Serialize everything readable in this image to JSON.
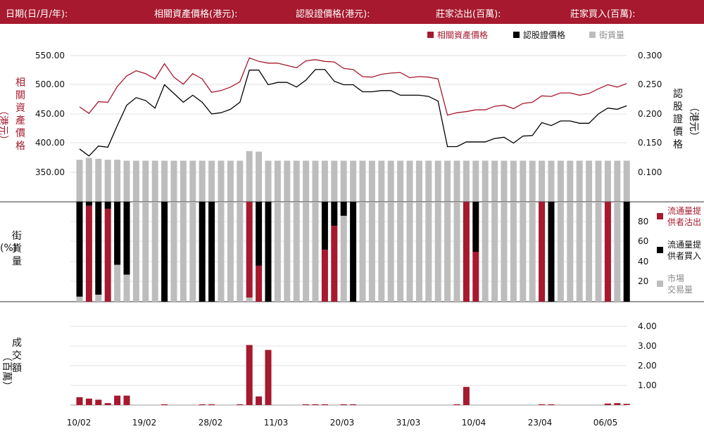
{
  "header": {
    "date_label": "日期(日/月/年):",
    "underlying_price_label": "相關資產價格(港元):",
    "warrant_price_label": "認股證價格(港元):",
    "issuer_sell_label": "莊家沽出(百萬):",
    "issuer_buy_label": "莊家買入(百萬):"
  },
  "legend": {
    "underlying": "相關資產價格",
    "warrant": "認股證價格",
    "outstanding": "街貨量"
  },
  "colors": {
    "red": "#a6192e",
    "black": "#000000",
    "grey": "#bdbdbd"
  },
  "chart_data": [
    {
      "type": "line",
      "title": "",
      "x_tick_labels": [
        "10/02",
        "19/02",
        "28/02",
        "11/03",
        "20/03",
        "31/03",
        "10/04",
        "23/04",
        "06/05"
      ],
      "y_left_label": "相關資產價格（港元）",
      "y_left_ticks": [
        "550.00",
        "500.00",
        "450.00",
        "400.00",
        "350.00"
      ],
      "y_left_lim": [
        300,
        560
      ],
      "y_right_label": "認股證價格（港元）",
      "y_right_ticks": [
        "0.300",
        "0.250",
        "0.200",
        "0.150",
        "0.100"
      ],
      "y_right_lim": [
        0.05,
        0.312
      ],
      "series": [
        {
          "name": "相關資產價格",
          "axis": "left",
          "color": "#a6192e",
          "values": [
            462,
            451,
            471,
            470,
            497,
            515,
            524,
            519,
            510,
            536,
            513,
            501,
            519,
            510,
            487,
            490,
            496,
            505,
            546,
            540,
            537,
            537,
            533,
            529,
            541,
            543,
            540,
            539,
            528,
            526,
            514,
            513,
            518,
            520,
            521,
            512,
            514,
            513,
            510,
            448,
            452,
            454,
            457,
            457,
            463,
            465,
            459,
            468,
            470,
            481,
            480,
            486,
            486,
            482,
            485,
            493,
            500,
            496,
            502
          ]
        },
        {
          "name": "認股證價格",
          "axis": "right",
          "color": "#000000",
          "values": [
            0.14,
            0.128,
            0.145,
            0.143,
            0.18,
            0.215,
            0.228,
            0.223,
            0.21,
            0.25,
            0.235,
            0.22,
            0.232,
            0.22,
            0.2,
            0.202,
            0.208,
            0.22,
            0.275,
            0.275,
            0.25,
            0.254,
            0.254,
            0.246,
            0.258,
            0.276,
            0.276,
            0.256,
            0.25,
            0.25,
            0.238,
            0.238,
            0.24,
            0.24,
            0.232,
            0.232,
            0.232,
            0.23,
            0.222,
            0.144,
            0.144,
            0.152,
            0.152,
            0.152,
            0.158,
            0.16,
            0.15,
            0.162,
            0.163,
            0.185,
            0.18,
            0.188,
            0.188,
            0.184,
            0.184,
            0.2,
            0.21,
            0.208,
            0.214
          ]
        },
        {
          "name": "街貨量",
          "kind": "bar",
          "color": "#bdbdbd",
          "values": [
            88,
            92,
            90,
            88,
            88,
            86,
            86,
            86,
            86,
            86,
            86,
            86,
            86,
            86,
            86,
            86,
            86,
            86,
            106,
            105,
            86,
            86,
            86,
            86,
            86,
            86,
            86,
            86,
            86,
            86,
            86,
            86,
            86,
            86,
            86,
            86,
            86,
            86,
            86,
            86,
            86,
            86,
            86,
            86,
            86,
            86,
            86,
            86,
            86,
            86,
            86,
            86,
            86,
            86,
            86,
            86,
            86,
            86,
            86
          ]
        }
      ]
    },
    {
      "type": "bar",
      "stacked": true,
      "title": "",
      "y_label": "街貨量（%）",
      "y_ticks": [
        "80",
        "60",
        "40",
        "20"
      ],
      "ylim": [
        0,
        100
      ],
      "legend": [
        "流通量提供者沽出",
        "流通量提供者買入",
        "市場交易量"
      ],
      "series": [
        {
          "name": "流通量提供者沽出",
          "color": "#a6192e",
          "values": [
            0,
            96,
            0,
            93,
            0,
            0,
            0,
            0,
            0,
            0,
            0,
            0,
            0,
            0,
            0,
            0,
            0,
            0,
            96,
            36,
            0,
            0,
            0,
            0,
            0,
            0,
            52,
            76,
            0,
            0,
            0,
            0,
            0,
            0,
            0,
            0,
            0,
            0,
            0,
            0,
            0,
            100,
            50,
            0,
            0,
            0,
            0,
            0,
            0,
            100,
            0,
            0,
            0,
            0,
            0,
            0,
            100,
            0,
            0
          ]
        },
        {
          "name": "流通量提供者買入",
          "color": "#000000",
          "values": [
            95,
            4,
            93,
            7,
            63,
            73,
            0,
            0,
            0,
            100,
            0,
            0,
            0,
            100,
            100,
            0,
            0,
            0,
            0,
            64,
            100,
            0,
            0,
            0,
            0,
            0,
            48,
            24,
            14,
            100,
            0,
            0,
            0,
            0,
            0,
            0,
            0,
            0,
            0,
            0,
            0,
            0,
            50,
            0,
            0,
            0,
            0,
            0,
            0,
            0,
            100,
            0,
            0,
            0,
            0,
            0,
            0,
            0,
            100
          ]
        }
      ]
    },
    {
      "type": "bar",
      "title": "",
      "y_label": "成交額（百萬）",
      "y_ticks": [
        "4.00",
        "3.00",
        "2.00",
        "1.00"
      ],
      "ylim": [
        0,
        4.2
      ],
      "series": [
        {
          "name": "成交額",
          "color": "#a6192e",
          "values": [
            0.4,
            0.33,
            0.27,
            0.1,
            0.48,
            0.48,
            0,
            0,
            0,
            0.04,
            0,
            0,
            0,
            0.04,
            0.04,
            0,
            0,
            0.04,
            3.05,
            0.44,
            2.8,
            0,
            0,
            0,
            0.04,
            0.04,
            0.04,
            0,
            0.04,
            0.04,
            0,
            0,
            0,
            0,
            0,
            0,
            0,
            0,
            0,
            0,
            0.04,
            0.92,
            0,
            0,
            0,
            0,
            0,
            0,
            0,
            0.04,
            0.04,
            0,
            0,
            0,
            0,
            0,
            0.08,
            0.1,
            0.06
          ]
        }
      ]
    }
  ]
}
